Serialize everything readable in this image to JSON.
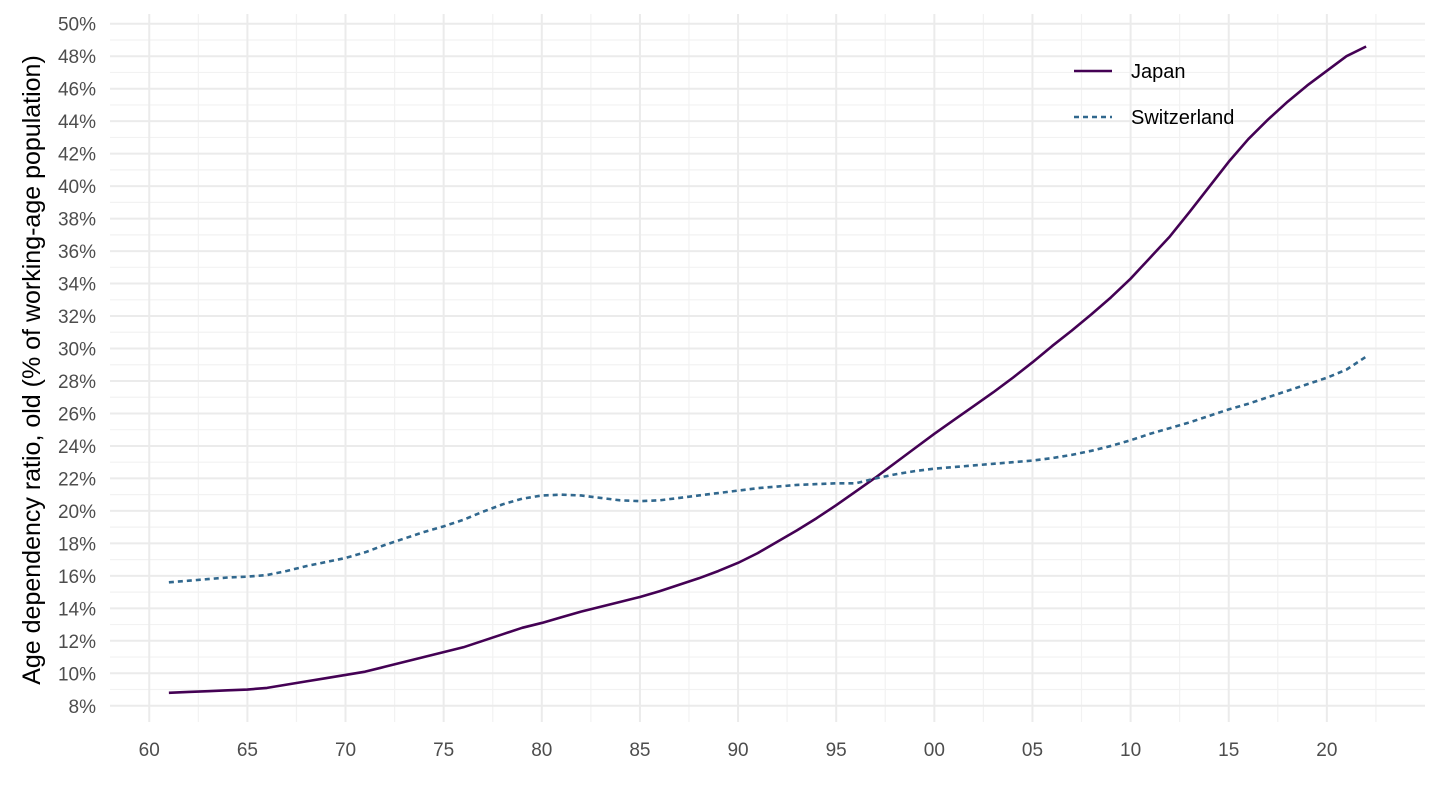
{
  "chart_data": {
    "type": "line",
    "title": "",
    "xlabel": "",
    "ylabel": "Age dependency ratio, old (% of working-age population)",
    "x_tick_labels": [
      "60",
      "65",
      "70",
      "75",
      "80",
      "85",
      "90",
      "95",
      "00",
      "05",
      "10",
      "15",
      "20"
    ],
    "x_tick_years": [
      1960,
      1965,
      1970,
      1975,
      1980,
      1985,
      1990,
      1995,
      2000,
      2005,
      2010,
      2015,
      2020
    ],
    "y_tick_labels": [
      "8%",
      "10%",
      "12%",
      "14%",
      "16%",
      "18%",
      "20%",
      "22%",
      "24%",
      "26%",
      "28%",
      "30%",
      "32%",
      "34%",
      "36%",
      "38%",
      "40%",
      "42%",
      "44%",
      "46%",
      "48%",
      "50%"
    ],
    "y_tick_values": [
      8,
      10,
      12,
      14,
      16,
      18,
      20,
      22,
      24,
      26,
      28,
      30,
      32,
      34,
      36,
      38,
      40,
      42,
      44,
      46,
      48,
      50
    ],
    "xlim": [
      1958,
      2025
    ],
    "ylim": [
      7,
      50.6
    ],
    "grid": true,
    "legend_position": "top-right",
    "x": [
      1961,
      1962,
      1963,
      1964,
      1965,
      1966,
      1967,
      1968,
      1969,
      1970,
      1971,
      1972,
      1973,
      1974,
      1975,
      1976,
      1977,
      1978,
      1979,
      1980,
      1981,
      1982,
      1983,
      1984,
      1985,
      1986,
      1987,
      1988,
      1989,
      1990,
      1991,
      1992,
      1993,
      1994,
      1995,
      1996,
      1997,
      1998,
      1999,
      2000,
      2001,
      2002,
      2003,
      2004,
      2005,
      2006,
      2007,
      2008,
      2009,
      2010,
      2011,
      2012,
      2013,
      2014,
      2015,
      2016,
      2017,
      2018,
      2019,
      2020,
      2021,
      2022
    ],
    "series": [
      {
        "name": "Japan",
        "color": "#440154",
        "dash": "solid",
        "values": [
          8.8,
          8.85,
          8.9,
          8.95,
          9.0,
          9.1,
          9.3,
          9.5,
          9.7,
          9.9,
          10.1,
          10.4,
          10.7,
          11.0,
          11.3,
          11.6,
          12.0,
          12.4,
          12.8,
          13.1,
          13.45,
          13.8,
          14.1,
          14.4,
          14.7,
          15.05,
          15.45,
          15.85,
          16.3,
          16.8,
          17.4,
          18.1,
          18.8,
          19.55,
          20.35,
          21.2,
          22.05,
          22.95,
          23.85,
          24.75,
          25.6,
          26.45,
          27.3,
          28.2,
          29.15,
          30.15,
          31.1,
          32.1,
          33.15,
          34.3,
          35.6,
          36.9,
          38.4,
          39.95,
          41.5,
          42.9,
          44.1,
          45.2,
          46.2,
          47.1,
          48.0,
          48.6
        ]
      },
      {
        "name": "Switzerland",
        "color": "#31688e",
        "dash": "dotted",
        "values": [
          15.6,
          15.7,
          15.8,
          15.9,
          15.95,
          16.05,
          16.3,
          16.6,
          16.85,
          17.1,
          17.45,
          17.9,
          18.3,
          18.7,
          19.05,
          19.45,
          19.95,
          20.4,
          20.75,
          20.95,
          21.0,
          20.95,
          20.8,
          20.65,
          20.6,
          20.65,
          20.8,
          20.95,
          21.1,
          21.25,
          21.4,
          21.5,
          21.6,
          21.65,
          21.7,
          21.7,
          22.0,
          22.25,
          22.45,
          22.6,
          22.7,
          22.8,
          22.9,
          23.0,
          23.1,
          23.25,
          23.45,
          23.7,
          24.0,
          24.35,
          24.75,
          25.1,
          25.45,
          25.85,
          26.25,
          26.6,
          27.0,
          27.4,
          27.8,
          28.2,
          28.7,
          29.5
        ]
      }
    ]
  }
}
